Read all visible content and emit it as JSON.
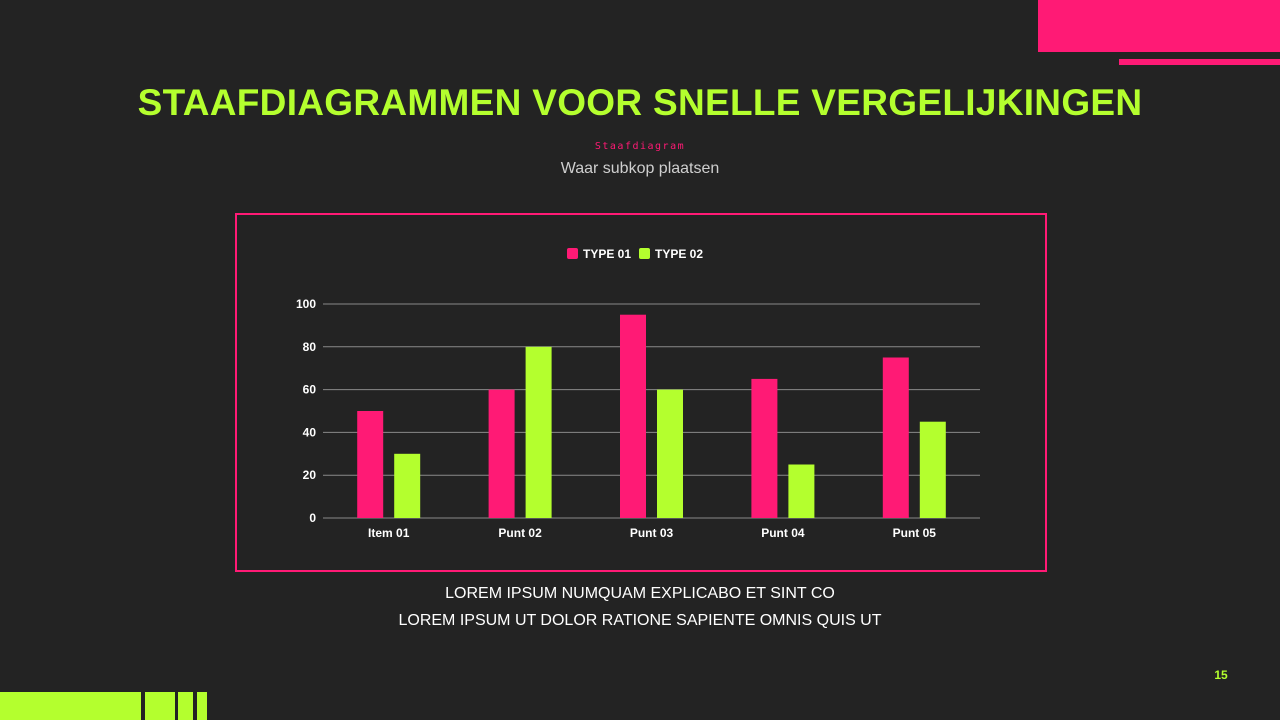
{
  "slide": {
    "title": "STAAFDIAGRAMMEN VOOR SNELLE VERGELIJKINGEN",
    "kicker": "Staafdiagram",
    "subtitle": "Waar subkop plaatsen",
    "body_lines": [
      "LOREM IPSUM NUMQUAM EXPLICABO ET SINT CO",
      "LOREM IPSUM UT DOLOR RATIONE SAPIENTE OMNIS QUIS UT"
    ],
    "page_number": "15",
    "colors": {
      "background": "#232323",
      "accent_pink": "#ff1a75",
      "accent_green": "#b4ff2e"
    }
  },
  "chart_data": {
    "type": "bar",
    "categories": [
      "Item 01",
      "Punt 02",
      "Punt 03",
      "Punt 04",
      "Punt 05"
    ],
    "series": [
      {
        "name": "TYPE 01",
        "color": "#ff1a75",
        "values": [
          50,
          60,
          95,
          65,
          75
        ]
      },
      {
        "name": "TYPE 02",
        "color": "#b4ff2e",
        "values": [
          30,
          80,
          60,
          25,
          45
        ]
      }
    ],
    "ylim": [
      0,
      100
    ],
    "yticks": [
      "0",
      "20",
      "40",
      "60",
      "80",
      "100"
    ],
    "grid": true,
    "legend": "top-center"
  }
}
